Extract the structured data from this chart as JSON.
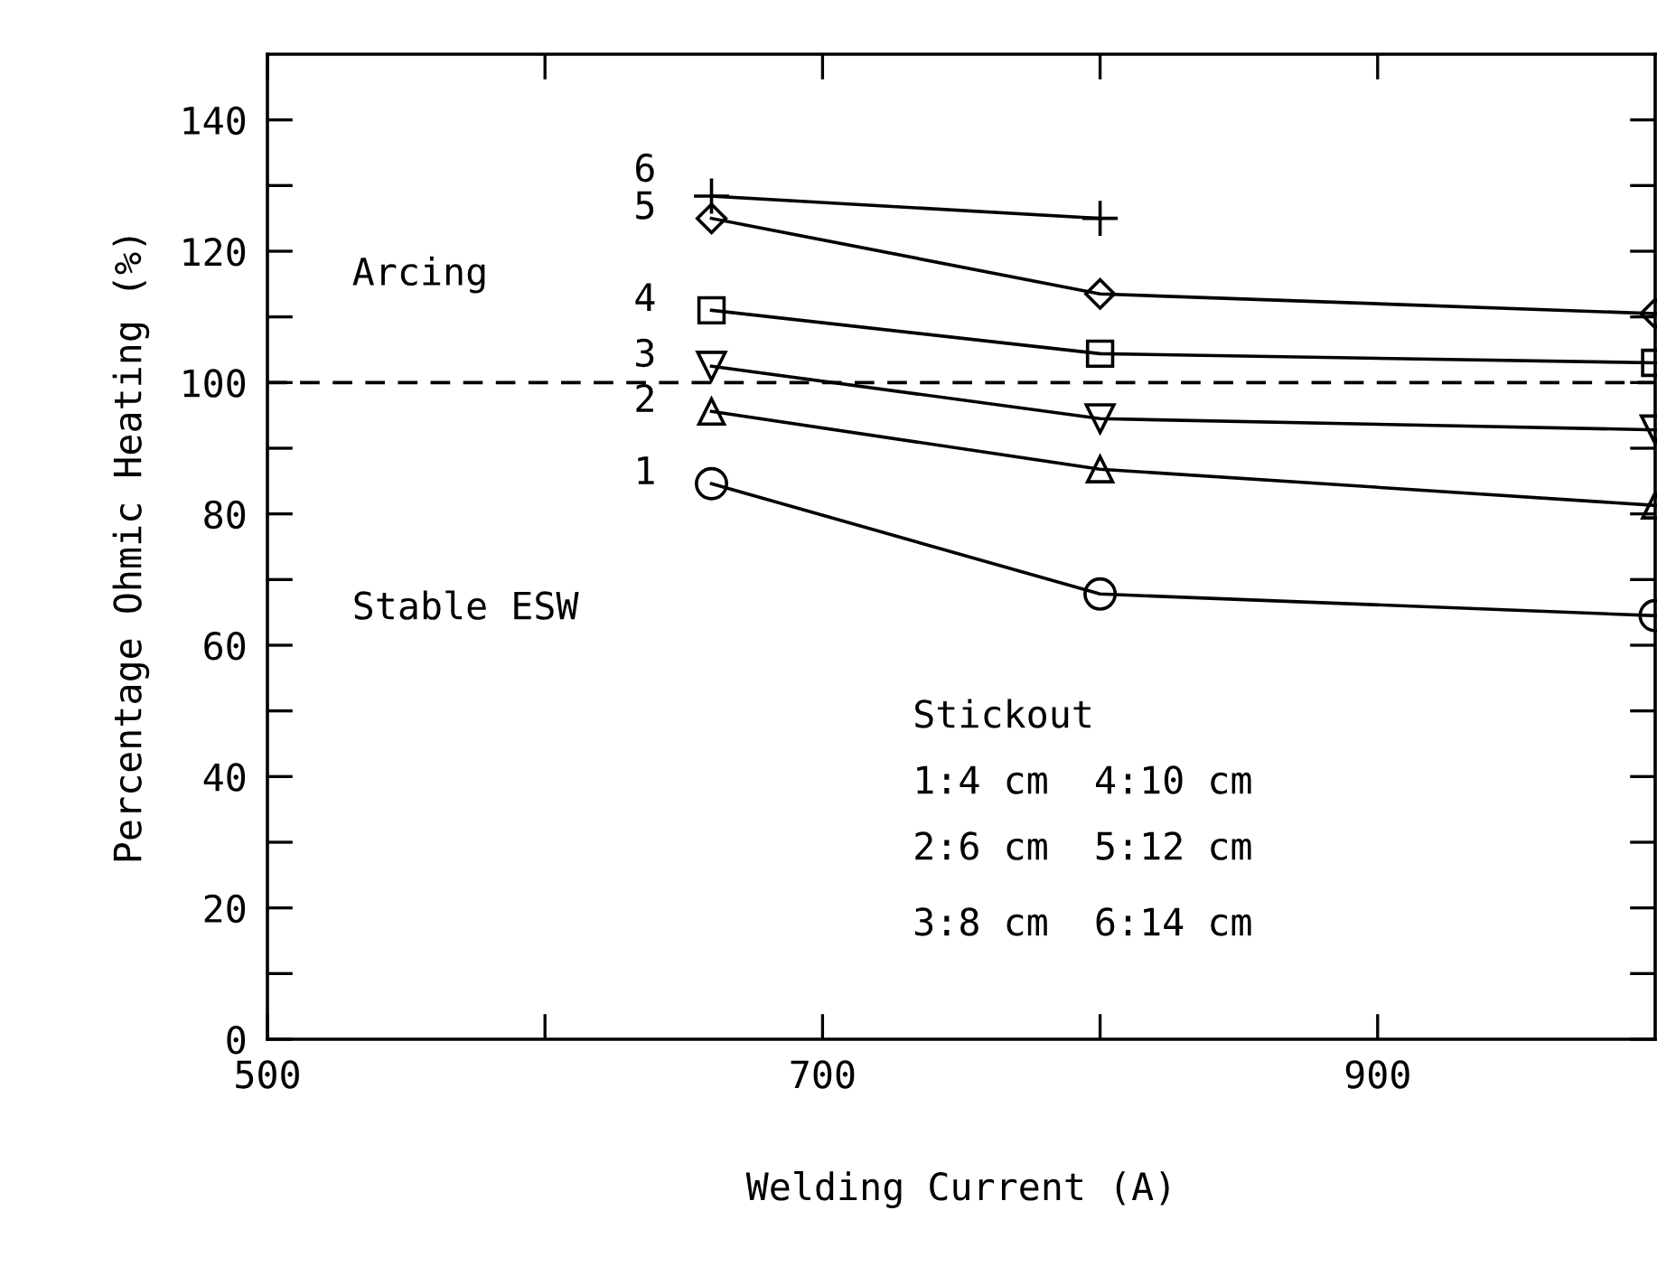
{
  "chart_data": {
    "type": "line",
    "xlabel": "Welding Current (A)",
    "ylabel": "Percentage Ohmic Heating (%)",
    "xlim": [
      500,
      1000
    ],
    "ylim": [
      0,
      150
    ],
    "xticks": [
      500,
      {
        "value": 600,
        "label": null
      },
      700,
      {
        "value": 800,
        "label": null
      },
      900
    ],
    "yticks": [
      0,
      {
        "value": 10,
        "label": null
      },
      20,
      {
        "value": 30,
        "label": null
      },
      40,
      {
        "value": 50,
        "label": null
      },
      60,
      {
        "value": 70,
        "label": null
      },
      80,
      {
        "value": 90,
        "label": null
      },
      100,
      {
        "value": 110,
        "label": null
      },
      120,
      {
        "value": 130,
        "label": null
      },
      140
    ],
    "grid": false,
    "legend": false,
    "series": [
      {
        "name": "1",
        "color": "#000000",
        "marker": "circle",
        "x": [
          660,
          800,
          1000
        ],
        "values": [
          84.6,
          67.8,
          64.5
        ]
      },
      {
        "name": "2",
        "color": "#000000",
        "marker": "triangle",
        "x": [
          660,
          800,
          1000
        ],
        "values": [
          95.6,
          86.8,
          81.3
        ]
      },
      {
        "name": "3",
        "color": "#000000",
        "marker": "triangle_down",
        "x": [
          660,
          800,
          1000
        ],
        "values": [
          102.5,
          94.5,
          92.8
        ]
      },
      {
        "name": "4",
        "color": "#000000",
        "marker": "square",
        "x": [
          660,
          800,
          1000
        ],
        "values": [
          111,
          104.4,
          103
        ]
      },
      {
        "name": "5",
        "color": "#000000",
        "marker": "diamond",
        "x": [
          660,
          800,
          1000
        ],
        "values": [
          125,
          113.5,
          110.5
        ]
      },
      {
        "name": "6",
        "color": "#000000",
        "marker": "cross",
        "x": [
          660,
          800
        ],
        "values": [
          128.4,
          125
        ]
      }
    ],
    "ref_lines": [
      {
        "axis": "y",
        "value": 100,
        "label": null,
        "color": "#000000",
        "line_style": "dashed"
      }
    ],
    "annotations": [
      "Arcing",
      "Stable ESW",
      "Stickout",
      "1:4 cm  4:10 cm",
      "2:6 cm  5:12 cm",
      "3:8 cm  6:14 cm"
    ]
  }
}
